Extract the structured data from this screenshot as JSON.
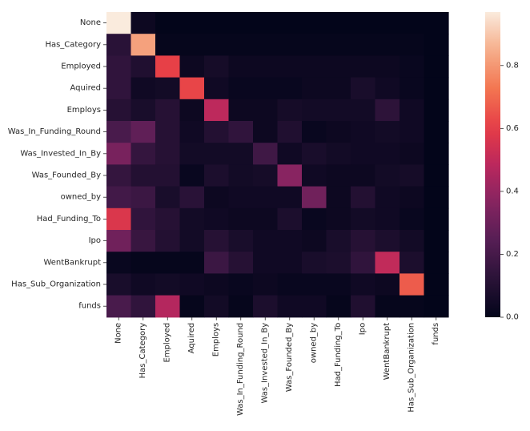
{
  "chart_data": {
    "type": "heatmap",
    "title": "",
    "xlabel": "",
    "ylabel": "",
    "row_labels": [
      "None",
      "Has_Category",
      "Employed",
      "Aquired",
      "Employs",
      "Was_In_Funding_Round",
      "Was_Invested_In_By",
      "Was_Founded_By",
      "owned_by",
      "Had_Funding_To",
      "Ipo",
      "WentBankrupt",
      "Has_Sub_Organization",
      "funds"
    ],
    "col_labels": [
      "None",
      "Has_Category",
      "Employed",
      "Aquired",
      "Employs",
      "Was_In_Funding_Round",
      "Was_Invested_In_By",
      "Was_Founded_By",
      "owned_by",
      "Had_Funding_To",
      "Ipo",
      "WentBankrupt",
      "Has_Sub_Organization",
      "funds"
    ],
    "values": [
      [
        0.97,
        0.03,
        0.0,
        0.0,
        0.0,
        0.0,
        0.0,
        0.0,
        0.0,
        0.0,
        0.0,
        0.0,
        0.0,
        0.0
      ],
      [
        0.12,
        0.82,
        0.01,
        0.01,
        0.01,
        0.01,
        0.01,
        0.01,
        0.01,
        0.01,
        0.01,
        0.01,
        0.01,
        0.0
      ],
      [
        0.14,
        0.09,
        0.61,
        0.03,
        0.06,
        0.03,
        0.03,
        0.03,
        0.03,
        0.03,
        0.03,
        0.03,
        0.02,
        0.0
      ],
      [
        0.14,
        0.04,
        0.05,
        0.62,
        0.04,
        0.02,
        0.02,
        0.02,
        0.03,
        0.03,
        0.07,
        0.04,
        0.02,
        0.0
      ],
      [
        0.11,
        0.07,
        0.11,
        0.03,
        0.49,
        0.03,
        0.03,
        0.06,
        0.05,
        0.05,
        0.05,
        0.13,
        0.04,
        0.0
      ],
      [
        0.21,
        0.27,
        0.11,
        0.04,
        0.1,
        0.14,
        0.03,
        0.09,
        0.02,
        0.03,
        0.04,
        0.05,
        0.04,
        0.0
      ],
      [
        0.33,
        0.15,
        0.11,
        0.05,
        0.05,
        0.05,
        0.18,
        0.04,
        0.07,
        0.05,
        0.04,
        0.04,
        0.03,
        0.0
      ],
      [
        0.15,
        0.1,
        0.1,
        0.02,
        0.08,
        0.05,
        0.06,
        0.37,
        0.04,
        0.03,
        0.03,
        0.05,
        0.06,
        0.0
      ],
      [
        0.19,
        0.17,
        0.07,
        0.12,
        0.03,
        0.04,
        0.04,
        0.04,
        0.31,
        0.03,
        0.1,
        0.04,
        0.03,
        0.0
      ],
      [
        0.57,
        0.14,
        0.11,
        0.05,
        0.04,
        0.03,
        0.03,
        0.08,
        0.02,
        0.03,
        0.05,
        0.04,
        0.02,
        0.0
      ],
      [
        0.31,
        0.16,
        0.1,
        0.05,
        0.11,
        0.07,
        0.04,
        0.04,
        0.03,
        0.07,
        0.11,
        0.08,
        0.05,
        0.0
      ],
      [
        0.02,
        0.01,
        0.01,
        0.01,
        0.17,
        0.11,
        0.04,
        0.04,
        0.07,
        0.08,
        0.14,
        0.5,
        0.08,
        0.0
      ],
      [
        0.07,
        0.04,
        0.05,
        0.04,
        0.03,
        0.02,
        0.03,
        0.02,
        0.02,
        0.02,
        0.04,
        0.03,
        0.67,
        0.0
      ],
      [
        0.21,
        0.14,
        0.47,
        0.01,
        0.05,
        0.01,
        0.08,
        0.04,
        0.04,
        0.01,
        0.09,
        0.01,
        0.01,
        0.0
      ]
    ],
    "vmin": 0.0,
    "vmax": 0.97,
    "colormap": "rocket",
    "colorbar": {
      "ticks": [
        0.0,
        0.2,
        0.4,
        0.6,
        0.8
      ],
      "tick_labels": [
        "0.0",
        "0.2",
        "0.4",
        "0.6",
        "0.8"
      ]
    }
  }
}
